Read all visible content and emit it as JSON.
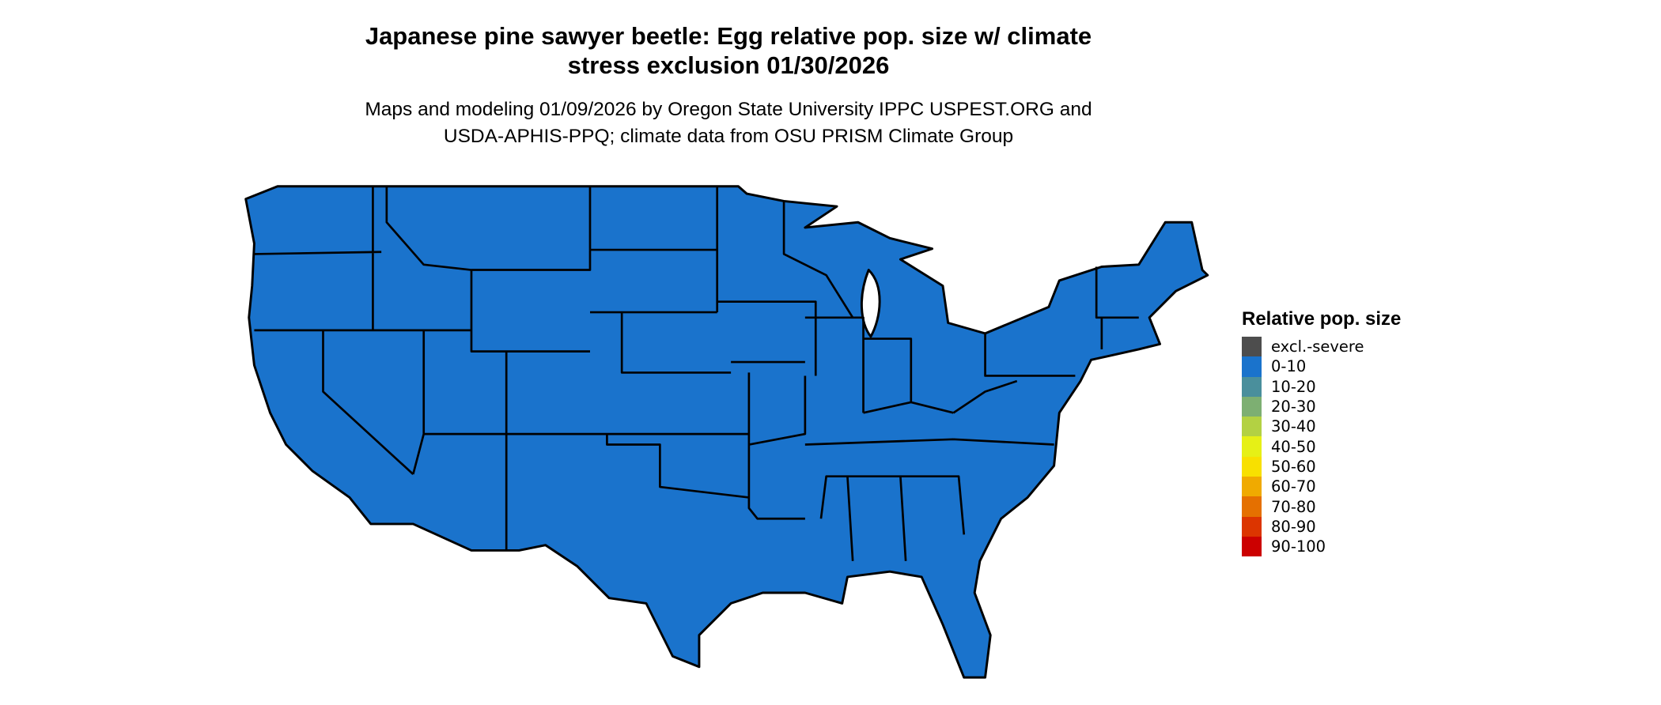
{
  "title": "Japanese pine sawyer beetle: Egg relative pop. size w/ climate stress exclusion 01/30/2026",
  "title_line1": "Japanese pine sawyer beetle: Egg relative pop. size w/ climate",
  "title_line2": "stress exclusion 01/30/2026",
  "subtitle_line1": "Maps and modeling 01/09/2026 by Oregon State University IPPC USPEST.ORG and",
  "subtitle_line2": "USDA-APHIS-PPQ; climate data from OSU PRISM Climate Group",
  "map": {
    "region": "Contiguous United States",
    "fill_category": "0-10",
    "fill_color": "#1a73cc",
    "border_color": "#000000"
  },
  "legend": {
    "title": "Relative pop. size",
    "items": [
      {
        "label": "excl.-severe",
        "color": "#4d4d4d"
      },
      {
        "label": "0-10",
        "color": "#1a73cc"
      },
      {
        "label": "10-20",
        "color": "#4a8f9c"
      },
      {
        "label": "20-30",
        "color": "#7daf72"
      },
      {
        "label": "30-40",
        "color": "#b3d143"
      },
      {
        "label": "40-50",
        "color": "#e6f016"
      },
      {
        "label": "50-60",
        "color": "#f8e000"
      },
      {
        "label": "60-70",
        "color": "#f0aa00"
      },
      {
        "label": "70-80",
        "color": "#e57000"
      },
      {
        "label": "80-90",
        "color": "#dc3500"
      },
      {
        "label": "90-100",
        "color": "#cc0000"
      }
    ]
  }
}
